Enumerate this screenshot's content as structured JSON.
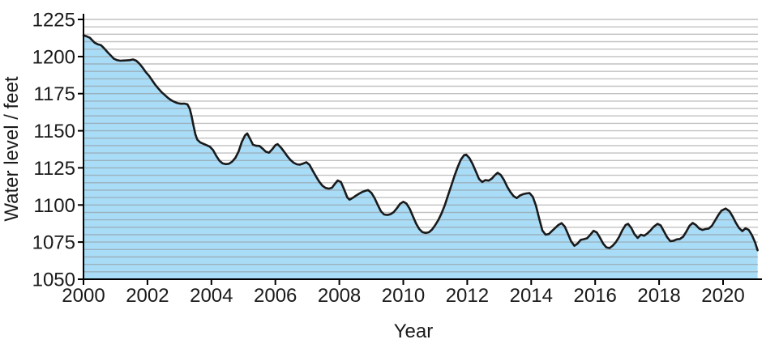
{
  "chart_data": {
    "type": "area",
    "title": "",
    "xlabel": "Year",
    "ylabel": "Water level / feet",
    "x_ticks": [
      2000,
      2002,
      2004,
      2006,
      2008,
      2010,
      2012,
      2014,
      2016,
      2018,
      2020
    ],
    "y_ticks": [
      1050,
      1075,
      1100,
      1125,
      1150,
      1175,
      1200,
      1225
    ],
    "xlim": [
      2000,
      2021.08
    ],
    "ylim": [
      1050,
      1225
    ],
    "grid_step": 5,
    "grid": "on",
    "legend": "none",
    "colors": {
      "fill": "#a9dcf7",
      "line": "#1a1a1a",
      "grid": "#8f8f8f",
      "axis": "#000000"
    },
    "series": [
      {
        "name": "Water level",
        "points": [
          [
            2000.0,
            1214.3
          ],
          [
            2000.1,
            1213.6
          ],
          [
            2000.2,
            1212.6
          ],
          [
            2000.25,
            1211.5
          ],
          [
            2000.35,
            1209.3
          ],
          [
            2000.45,
            1208.2
          ],
          [
            2000.55,
            1207.6
          ],
          [
            2000.65,
            1205.5
          ],
          [
            2000.75,
            1203.0
          ],
          [
            2000.85,
            1200.8
          ],
          [
            2000.95,
            1198.5
          ],
          [
            2001.05,
            1197.6
          ],
          [
            2001.15,
            1197.2
          ],
          [
            2001.25,
            1197.3
          ],
          [
            2001.35,
            1197.4
          ],
          [
            2001.45,
            1197.6
          ],
          [
            2001.55,
            1198.0
          ],
          [
            2001.65,
            1197.2
          ],
          [
            2001.75,
            1195.2
          ],
          [
            2001.85,
            1192.5
          ],
          [
            2001.95,
            1189.5
          ],
          [
            2002.05,
            1187.0
          ],
          [
            2002.15,
            1183.9
          ],
          [
            2002.25,
            1180.8
          ],
          [
            2002.35,
            1178.2
          ],
          [
            2002.45,
            1175.8
          ],
          [
            2002.55,
            1173.9
          ],
          [
            2002.65,
            1172.0
          ],
          [
            2002.75,
            1170.5
          ],
          [
            2002.85,
            1169.4
          ],
          [
            2002.95,
            1168.6
          ],
          [
            2003.05,
            1168.2
          ],
          [
            2003.15,
            1168.3
          ],
          [
            2003.25,
            1167.8
          ],
          [
            2003.32,
            1165.0
          ],
          [
            2003.38,
            1160.0
          ],
          [
            2003.44,
            1153.5
          ],
          [
            2003.5,
            1147.5
          ],
          [
            2003.56,
            1144.0
          ],
          [
            2003.65,
            1142.2
          ],
          [
            2003.75,
            1141.2
          ],
          [
            2003.85,
            1140.3
          ],
          [
            2003.95,
            1139.3
          ],
          [
            2004.05,
            1137.0
          ],
          [
            2004.15,
            1133.2
          ],
          [
            2004.25,
            1129.8
          ],
          [
            2004.35,
            1128.0
          ],
          [
            2004.45,
            1127.5
          ],
          [
            2004.55,
            1127.8
          ],
          [
            2004.65,
            1129.2
          ],
          [
            2004.75,
            1131.8
          ],
          [
            2004.85,
            1136.0
          ],
          [
            2004.95,
            1142.5
          ],
          [
            2005.05,
            1146.8
          ],
          [
            2005.12,
            1148.2
          ],
          [
            2005.2,
            1145.0
          ],
          [
            2005.3,
            1140.6
          ],
          [
            2005.4,
            1139.9
          ],
          [
            2005.5,
            1139.8
          ],
          [
            2005.6,
            1138.0
          ],
          [
            2005.7,
            1135.9
          ],
          [
            2005.8,
            1135.2
          ],
          [
            2005.9,
            1137.5
          ],
          [
            2006.0,
            1140.3
          ],
          [
            2006.07,
            1141.0
          ],
          [
            2006.17,
            1138.8
          ],
          [
            2006.27,
            1136.0
          ],
          [
            2006.37,
            1133.0
          ],
          [
            2006.47,
            1130.4
          ],
          [
            2006.57,
            1128.5
          ],
          [
            2006.67,
            1127.4
          ],
          [
            2006.77,
            1127.2
          ],
          [
            2006.87,
            1127.9
          ],
          [
            2006.97,
            1128.8
          ],
          [
            2007.07,
            1127.0
          ],
          [
            2007.17,
            1123.0
          ],
          [
            2007.27,
            1119.3
          ],
          [
            2007.37,
            1115.8
          ],
          [
            2007.47,
            1113.0
          ],
          [
            2007.57,
            1111.5
          ],
          [
            2007.67,
            1111.0
          ],
          [
            2007.77,
            1111.6
          ],
          [
            2007.87,
            1114.5
          ],
          [
            2007.95,
            1116.5
          ],
          [
            2008.05,
            1115.5
          ],
          [
            2008.15,
            1110.5
          ],
          [
            2008.25,
            1105.0
          ],
          [
            2008.32,
            1103.6
          ],
          [
            2008.42,
            1104.8
          ],
          [
            2008.52,
            1106.3
          ],
          [
            2008.62,
            1107.6
          ],
          [
            2008.72,
            1108.8
          ],
          [
            2008.82,
            1109.6
          ],
          [
            2008.9,
            1110.0
          ],
          [
            2009.0,
            1108.2
          ],
          [
            2009.1,
            1104.8
          ],
          [
            2009.2,
            1100.2
          ],
          [
            2009.3,
            1095.8
          ],
          [
            2009.4,
            1093.6
          ],
          [
            2009.5,
            1093.3
          ],
          [
            2009.6,
            1093.8
          ],
          [
            2009.7,
            1095.2
          ],
          [
            2009.8,
            1097.8
          ],
          [
            2009.9,
            1100.8
          ],
          [
            2010.0,
            1102.2
          ],
          [
            2010.1,
            1101.0
          ],
          [
            2010.2,
            1097.5
          ],
          [
            2010.3,
            1092.5
          ],
          [
            2010.4,
            1087.5
          ],
          [
            2010.5,
            1083.8
          ],
          [
            2010.6,
            1081.7
          ],
          [
            2010.7,
            1081.2
          ],
          [
            2010.8,
            1081.6
          ],
          [
            2010.9,
            1083.5
          ],
          [
            2011.0,
            1086.5
          ],
          [
            2011.1,
            1090.0
          ],
          [
            2011.2,
            1094.5
          ],
          [
            2011.3,
            1100.0
          ],
          [
            2011.4,
            1106.5
          ],
          [
            2011.5,
            1113.0
          ],
          [
            2011.6,
            1119.5
          ],
          [
            2011.7,
            1125.5
          ],
          [
            2011.8,
            1130.5
          ],
          [
            2011.9,
            1133.6
          ],
          [
            2011.97,
            1133.9
          ],
          [
            2012.07,
            1131.5
          ],
          [
            2012.17,
            1127.5
          ],
          [
            2012.27,
            1122.5
          ],
          [
            2012.37,
            1117.5
          ],
          [
            2012.47,
            1115.5
          ],
          [
            2012.57,
            1116.8
          ],
          [
            2012.67,
            1116.4
          ],
          [
            2012.77,
            1117.8
          ],
          [
            2012.87,
            1120.2
          ],
          [
            2012.95,
            1121.7
          ],
          [
            2013.05,
            1120.2
          ],
          [
            2013.15,
            1116.8
          ],
          [
            2013.25,
            1112.3
          ],
          [
            2013.35,
            1108.7
          ],
          [
            2013.45,
            1106.0
          ],
          [
            2013.55,
            1104.6
          ],
          [
            2013.65,
            1106.4
          ],
          [
            2013.75,
            1107.3
          ],
          [
            2013.85,
            1107.8
          ],
          [
            2013.95,
            1108.0
          ],
          [
            2014.05,
            1105.5
          ],
          [
            2014.15,
            1099.5
          ],
          [
            2014.25,
            1090.8
          ],
          [
            2014.35,
            1082.8
          ],
          [
            2014.45,
            1080.0
          ],
          [
            2014.55,
            1080.4
          ],
          [
            2014.65,
            1082.5
          ],
          [
            2014.75,
            1084.5
          ],
          [
            2014.85,
            1086.5
          ],
          [
            2014.95,
            1087.8
          ],
          [
            2015.05,
            1085.5
          ],
          [
            2015.15,
            1080.5
          ],
          [
            2015.25,
            1075.5
          ],
          [
            2015.35,
            1072.5
          ],
          [
            2015.45,
            1074.0
          ],
          [
            2015.55,
            1076.5
          ],
          [
            2015.65,
            1077.0
          ],
          [
            2015.75,
            1077.6
          ],
          [
            2015.85,
            1080.0
          ],
          [
            2015.95,
            1082.6
          ],
          [
            2016.05,
            1081.5
          ],
          [
            2016.15,
            1078.0
          ],
          [
            2016.25,
            1074.0
          ],
          [
            2016.35,
            1071.5
          ],
          [
            2016.45,
            1071.0
          ],
          [
            2016.55,
            1072.6
          ],
          [
            2016.65,
            1075.0
          ],
          [
            2016.75,
            1078.5
          ],
          [
            2016.85,
            1083.0
          ],
          [
            2016.95,
            1086.5
          ],
          [
            2017.03,
            1087.3
          ],
          [
            2017.13,
            1084.5
          ],
          [
            2017.23,
            1080.3
          ],
          [
            2017.33,
            1077.8
          ],
          [
            2017.43,
            1080.0
          ],
          [
            2017.53,
            1079.3
          ],
          [
            2017.63,
            1080.8
          ],
          [
            2017.73,
            1082.8
          ],
          [
            2017.83,
            1085.3
          ],
          [
            2017.95,
            1087.3
          ],
          [
            2018.05,
            1086.2
          ],
          [
            2018.15,
            1082.3
          ],
          [
            2018.25,
            1078.3
          ],
          [
            2018.35,
            1075.6
          ],
          [
            2018.45,
            1075.9
          ],
          [
            2018.55,
            1076.8
          ],
          [
            2018.65,
            1077.1
          ],
          [
            2018.75,
            1078.6
          ],
          [
            2018.85,
            1082.0
          ],
          [
            2018.95,
            1086.0
          ],
          [
            2019.05,
            1087.9
          ],
          [
            2019.15,
            1086.5
          ],
          [
            2019.25,
            1084.2
          ],
          [
            2019.35,
            1083.2
          ],
          [
            2019.45,
            1083.8
          ],
          [
            2019.55,
            1084.1
          ],
          [
            2019.65,
            1086.0
          ],
          [
            2019.75,
            1089.5
          ],
          [
            2019.85,
            1093.2
          ],
          [
            2019.95,
            1096.2
          ],
          [
            2020.08,
            1097.6
          ],
          [
            2020.2,
            1095.8
          ],
          [
            2020.3,
            1092.3
          ],
          [
            2020.4,
            1088.0
          ],
          [
            2020.5,
            1084.5
          ],
          [
            2020.6,
            1082.4
          ],
          [
            2020.7,
            1084.3
          ],
          [
            2020.8,
            1083.2
          ],
          [
            2020.9,
            1079.8
          ],
          [
            2021.0,
            1074.8
          ],
          [
            2021.08,
            1069.5
          ]
        ]
      }
    ]
  }
}
